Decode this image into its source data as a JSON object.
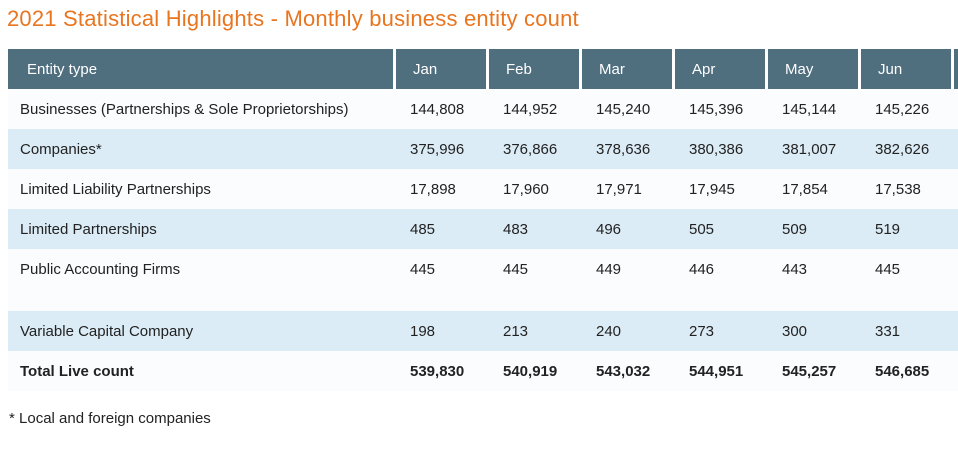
{
  "title": "2021 Statistical Highlights - Monthly business entity count",
  "footnote": "* Local and foreign companies",
  "colors": {
    "title": "#e8751f",
    "header_bg": "#4f6e7e",
    "header_text": "#ffffff",
    "row_bg": "#fbfcfd",
    "row_alt_bg": "#dbecf6",
    "text": "#222222"
  },
  "table": {
    "entity_col_header": "Entity type",
    "months": [
      "Jan",
      "Feb",
      "Mar",
      "Apr",
      "May",
      "Jun"
    ],
    "rows": [
      {
        "label": "Businesses (Partnerships & Sole Proprietorships)",
        "values": [
          "144,808",
          "144,952",
          "145,240",
          "145,396",
          "145,144",
          "145,226"
        ],
        "shade": false
      },
      {
        "label": "Companies*",
        "values": [
          "375,996",
          "376,866",
          "378,636",
          "380,386",
          "381,007",
          "382,626"
        ],
        "shade": true
      },
      {
        "label": "Limited Liability Partnerships",
        "values": [
          "17,898",
          "17,960",
          "17,971",
          "17,945",
          "17,854",
          "17,538"
        ],
        "shade": false
      },
      {
        "label": "Limited Partnerships",
        "values": [
          "485",
          "483",
          "496",
          "505",
          "509",
          "519"
        ],
        "shade": true
      },
      {
        "label": "Public Accounting Firms",
        "values": [
          "445",
          "445",
          "449",
          "446",
          "443",
          "445"
        ],
        "shade": false
      },
      {
        "label": "",
        "values": [],
        "spacer": true
      },
      {
        "label": "Variable Capital Company",
        "values": [
          "198",
          "213",
          "240",
          "273",
          "300",
          "331"
        ],
        "shade": true
      },
      {
        "label": "Total Live count",
        "values": [
          "539,830",
          "540,919",
          "543,032",
          "544,951",
          "545,257",
          "546,685"
        ],
        "total": true
      }
    ]
  },
  "chart_data": {
    "type": "table",
    "title": "2021 Statistical Highlights - Monthly business entity count",
    "categories": [
      "Jan",
      "Feb",
      "Mar",
      "Apr",
      "May",
      "Jun"
    ],
    "series": [
      {
        "name": "Businesses (Partnerships & Sole Proprietorships)",
        "values": [
          144808,
          144952,
          145240,
          145396,
          145144,
          145226
        ]
      },
      {
        "name": "Companies*",
        "values": [
          375996,
          376866,
          378636,
          380386,
          381007,
          382626
        ]
      },
      {
        "name": "Limited Liability Partnerships",
        "values": [
          17898,
          17960,
          17971,
          17945,
          17854,
          17538
        ]
      },
      {
        "name": "Limited Partnerships",
        "values": [
          485,
          483,
          496,
          505,
          509,
          519
        ]
      },
      {
        "name": "Public Accounting Firms",
        "values": [
          445,
          445,
          449,
          446,
          443,
          445
        ]
      },
      {
        "name": "Variable Capital Company",
        "values": [
          198,
          213,
          240,
          273,
          300,
          331
        ]
      },
      {
        "name": "Total Live count",
        "values": [
          539830,
          540919,
          543032,
          544951,
          545257,
          546685
        ]
      }
    ],
    "footnote": "* Local and foreign companies"
  }
}
